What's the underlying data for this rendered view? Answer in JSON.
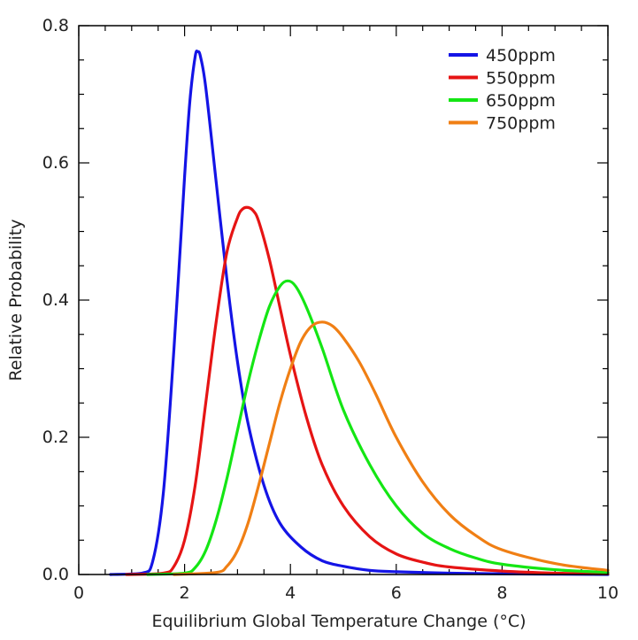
{
  "chart_data": {
    "type": "line",
    "title": "",
    "xlabel": "Equilibrium Global Temperature Change (°C)",
    "ylabel": "Relative Probability",
    "xlim": [
      0,
      10
    ],
    "ylim": [
      0,
      0.8
    ],
    "x_ticks": [
      0,
      2,
      4,
      6,
      8,
      10
    ],
    "x_tick_labels": [
      "0",
      "2",
      "4",
      "6",
      "8",
      "10"
    ],
    "y_ticks": [
      0.0,
      0.2,
      0.4,
      0.6,
      0.8
    ],
    "y_tick_labels": [
      "0.0",
      "0.2",
      "0.4",
      "0.6",
      "0.8"
    ],
    "grid": false,
    "legend_position": "top-right",
    "series": [
      {
        "name": "450ppm",
        "color": "#1414e6",
        "x": [
          0.6,
          1.2,
          1.4,
          1.6,
          1.8,
          2.0,
          2.1,
          2.2,
          2.25,
          2.3,
          2.4,
          2.6,
          2.8,
          3.0,
          3.2,
          3.5,
          3.8,
          4.2,
          4.6,
          5.0,
          5.5,
          6.0,
          7.0,
          8.0,
          10.0
        ],
        "y": [
          0.0,
          0.002,
          0.02,
          0.12,
          0.33,
          0.58,
          0.69,
          0.755,
          0.762,
          0.755,
          0.71,
          0.57,
          0.43,
          0.31,
          0.22,
          0.13,
          0.075,
          0.04,
          0.02,
          0.012,
          0.006,
          0.004,
          0.002,
          0.001,
          0.0
        ]
      },
      {
        "name": "550ppm",
        "color": "#e61414",
        "x": [
          0.9,
          1.6,
          1.8,
          2.0,
          2.2,
          2.4,
          2.6,
          2.8,
          3.0,
          3.1,
          3.2,
          3.3,
          3.4,
          3.6,
          3.8,
          4.0,
          4.3,
          4.6,
          5.0,
          5.5,
          6.0,
          6.5,
          7.0,
          8.0,
          9.0,
          10.0
        ],
        "y": [
          0.0,
          0.002,
          0.012,
          0.05,
          0.13,
          0.25,
          0.37,
          0.47,
          0.52,
          0.533,
          0.535,
          0.53,
          0.515,
          0.46,
          0.39,
          0.32,
          0.23,
          0.16,
          0.1,
          0.055,
          0.03,
          0.018,
          0.011,
          0.005,
          0.002,
          0.001
        ]
      },
      {
        "name": "650ppm",
        "color": "#14e614",
        "x": [
          1.3,
          2.0,
          2.2,
          2.4,
          2.6,
          2.8,
          3.0,
          3.2,
          3.4,
          3.6,
          3.8,
          3.95,
          4.1,
          4.3,
          4.6,
          5.0,
          5.5,
          6.0,
          6.5,
          7.0,
          7.5,
          8.0,
          9.0,
          10.0
        ],
        "y": [
          0.0,
          0.002,
          0.01,
          0.035,
          0.08,
          0.14,
          0.21,
          0.28,
          0.34,
          0.39,
          0.42,
          0.428,
          0.42,
          0.39,
          0.33,
          0.24,
          0.16,
          0.1,
          0.06,
          0.038,
          0.024,
          0.015,
          0.007,
          0.003
        ]
      },
      {
        "name": "750ppm",
        "color": "#f07f14",
        "x": [
          1.8,
          2.6,
          2.8,
          3.0,
          3.2,
          3.4,
          3.6,
          3.8,
          4.0,
          4.2,
          4.4,
          4.6,
          4.8,
          5.0,
          5.3,
          5.6,
          6.0,
          6.5,
          7.0,
          7.5,
          8.0,
          9.0,
          10.0
        ],
        "y": [
          0.0,
          0.003,
          0.012,
          0.035,
          0.075,
          0.13,
          0.19,
          0.25,
          0.3,
          0.34,
          0.362,
          0.368,
          0.362,
          0.345,
          0.31,
          0.265,
          0.2,
          0.135,
          0.088,
          0.057,
          0.036,
          0.016,
          0.006
        ]
      }
    ]
  }
}
